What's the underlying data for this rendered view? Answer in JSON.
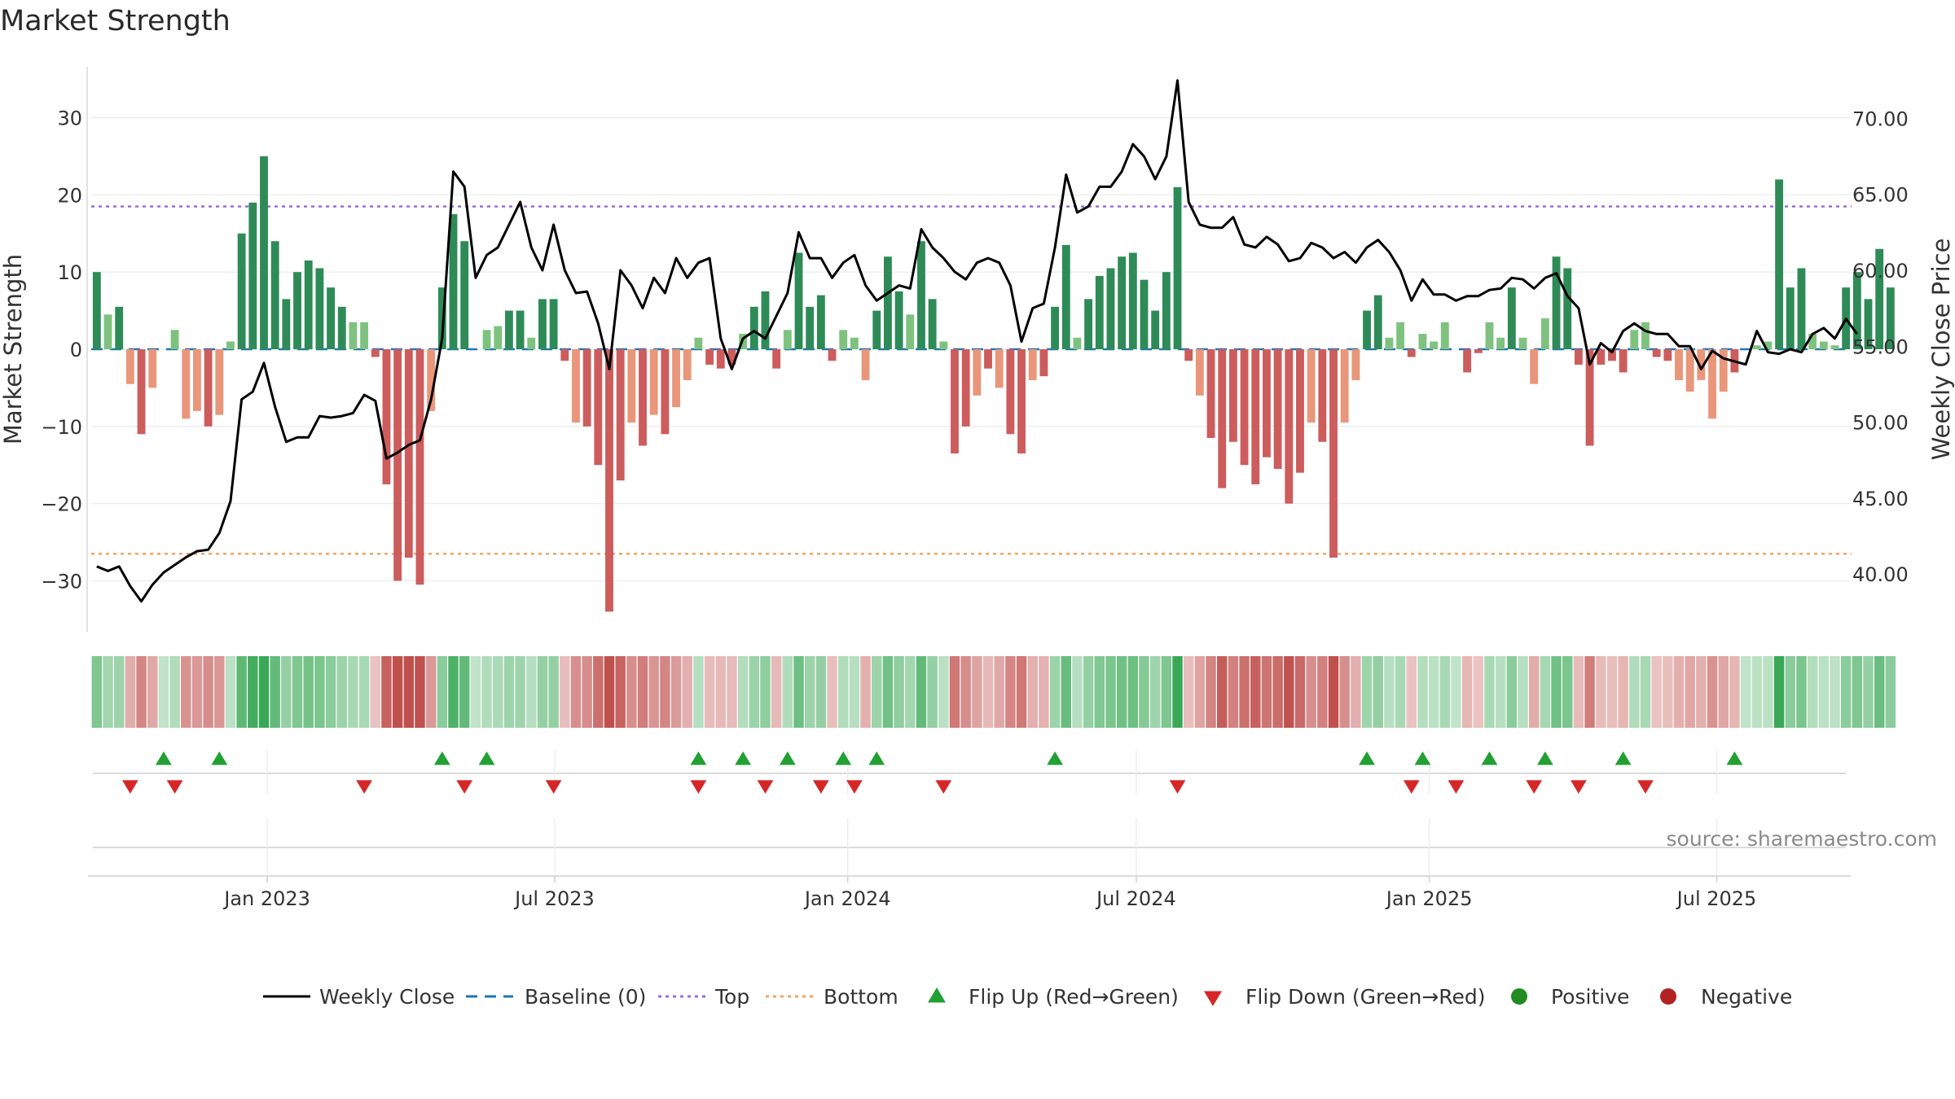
{
  "title": "Market Strength",
  "source": "source: sharemaestro.com",
  "chart_data": {
    "type": "bar+line",
    "y_left_label": "Market Strength",
    "y_right_label": "Weekly Close Price",
    "y_left_ticks": [
      "30",
      "20",
      "10",
      "0",
      "−10",
      "−20",
      "−30"
    ],
    "y_left_tick_values": [
      30,
      20,
      10,
      0,
      -10,
      -20,
      -30
    ],
    "y_right_ticks": [
      "70.00",
      "65.00",
      "60.00",
      "55.00",
      "50.00",
      "45.00",
      "40.00"
    ],
    "y_right_tick_values": [
      70,
      65,
      60,
      55,
      50,
      45,
      40
    ],
    "ylim_left": [
      -36.6,
      36.6
    ],
    "ylim_right": [
      36.2,
      73.4
    ],
    "top_line": 18.5,
    "bottom_line": -26.5,
    "x_ticks": [
      "Jan 2023",
      "Jul 2023",
      "Jan 2024",
      "Jul 2024",
      "Jan 2025",
      "Jul 2025"
    ],
    "x_tick_weeks": [
      15.3,
      41.1,
      67.4,
      93.3,
      119.6,
      145.4
    ],
    "weeks_total": 158,
    "colors": {
      "strong_pos": "#2e8b57",
      "weak_pos": "#7fc27f",
      "strong_neg": "#cd5c5c",
      "weak_neg": "#e9967a",
      "line": "#000000",
      "top": "#9370db",
      "bottom": "#f4a460",
      "baseline": "#1f77b4",
      "flip_up": "#22a033",
      "flip_down": "#d62728"
    },
    "strength": [
      10,
      4.5,
      5.5,
      -4.5,
      -11,
      -5,
      0,
      2.5,
      -9,
      -8,
      -10,
      -8.5,
      1,
      15,
      19,
      25,
      14,
      6.5,
      10,
      11.5,
      10.5,
      8,
      5.5,
      3.5,
      3.5,
      -1,
      -17.5,
      -30,
      -27,
      -30.5,
      -8,
      8,
      17.5,
      14,
      0,
      2.5,
      3,
      5,
      5,
      1.5,
      6.5,
      6.5,
      -1.5,
      -9.5,
      -10,
      -15,
      -34,
      -17,
      -9.5,
      -12.5,
      -8.5,
      -11,
      -7.5,
      -4,
      1.5,
      -2,
      -2.5,
      -2,
      2,
      5.5,
      7.5,
      -2.5,
      2.5,
      12.5,
      5.5,
      7,
      -1.5,
      2.5,
      1.5,
      -4,
      5,
      12,
      7.5,
      4.5,
      14,
      6.5,
      1,
      -13.5,
      -10,
      -6,
      -2.5,
      -5,
      -11,
      -13.5,
      -4,
      -3.5,
      5.5,
      13.5,
      1.5,
      6.5,
      9.5,
      10.5,
      12,
      12.5,
      9,
      5,
      10,
      21,
      -1.5,
      -6,
      -11.5,
      -18,
      -12,
      -15,
      -17.5,
      -14,
      -15.5,
      -20,
      -16,
      -9.5,
      -12,
      -27,
      -9.5,
      -4,
      5,
      7,
      1.5,
      3.5,
      -1,
      2,
      1,
      3.5,
      0,
      -3,
      -0.5,
      3.5,
      1.5,
      8,
      1.5,
      -4.5,
      4,
      12,
      10.5,
      -2,
      -12.5,
      -2,
      -1.5,
      -3,
      2.5,
      3.5,
      -1,
      -1.5,
      -4,
      -5.5,
      -4,
      -9,
      -5.5,
      -3,
      0,
      0.5,
      1,
      22,
      8,
      10.5,
      2,
      1,
      0.5,
      8,
      10,
      6.5,
      13,
      8
    ],
    "close": [
      40.5,
      40.2,
      40.5,
      39.2,
      38.2,
      39.3,
      40.1,
      40.6,
      41.1,
      41.5,
      41.6,
      42.7,
      44.8,
      51.5,
      52,
      53.9,
      51,
      48.7,
      49,
      49,
      50.4,
      50.3,
      50.4,
      50.6,
      51.8,
      51.4,
      47.6,
      48,
      48.5,
      48.8,
      51.5,
      55.5,
      66.5,
      65.5,
      59.5,
      61,
      61.5,
      63,
      64.5,
      61.5,
      60,
      63,
      60,
      58.5,
      58.6,
      56.5,
      53.5,
      60,
      59,
      57.5,
      59.5,
      58.5,
      60.8,
      59.5,
      60.5,
      60.8,
      55.5,
      53.5,
      55.5,
      56,
      55.5,
      57,
      58.5,
      62.5,
      60.8,
      60.8,
      59.5,
      60.5,
      61,
      59,
      58,
      58.5,
      59,
      58.8,
      62.7,
      61.5,
      60.8,
      59.9,
      59.4,
      60.5,
      60.8,
      60.5,
      59,
      55.3,
      57.5,
      57.8,
      61.5,
      66.3,
      63.8,
      64.2,
      65.5,
      65.5,
      66.5,
      68.3,
      67.5,
      66,
      67.5,
      72.5,
      64.5,
      63,
      62.8,
      62.8,
      63.5,
      61.7,
      61.5,
      62.2,
      61.7,
      60.6,
      60.8,
      61.8,
      61.5,
      60.8,
      61.2,
      60.5,
      61.5,
      62,
      61.2,
      60,
      58,
      59.4,
      58.4,
      58.4,
      58,
      58.3,
      58.3,
      58.7,
      58.8,
      59.5,
      59.4,
      58.8,
      59.5,
      59.8,
      58.3,
      57.5,
      53.8,
      55.2,
      54.6,
      56,
      56.5,
      56,
      55.8,
      55.8,
      55,
      55,
      53.5,
      54.7,
      54.2,
      54,
      53.8,
      56,
      54.6,
      54.5,
      54.8,
      54.6,
      55.8,
      56.2,
      55.5,
      56.8,
      55.8
    ],
    "flip_up_weeks": [
      6,
      11,
      31,
      35,
      54,
      58,
      62,
      67,
      70,
      86,
      114,
      119,
      125,
      130,
      137,
      147
    ],
    "flip_down_weeks": [
      3,
      7,
      24,
      33,
      41,
      54,
      60,
      65,
      68,
      76,
      97,
      118,
      122,
      129,
      133,
      139
    ],
    "legend": [
      "Weekly Close",
      "Baseline (0)",
      "Top",
      "Bottom",
      "Flip Up (Red→Green)",
      "Flip Down (Green→Red)",
      "Positive",
      "Negative"
    ],
    "grid": true
  }
}
